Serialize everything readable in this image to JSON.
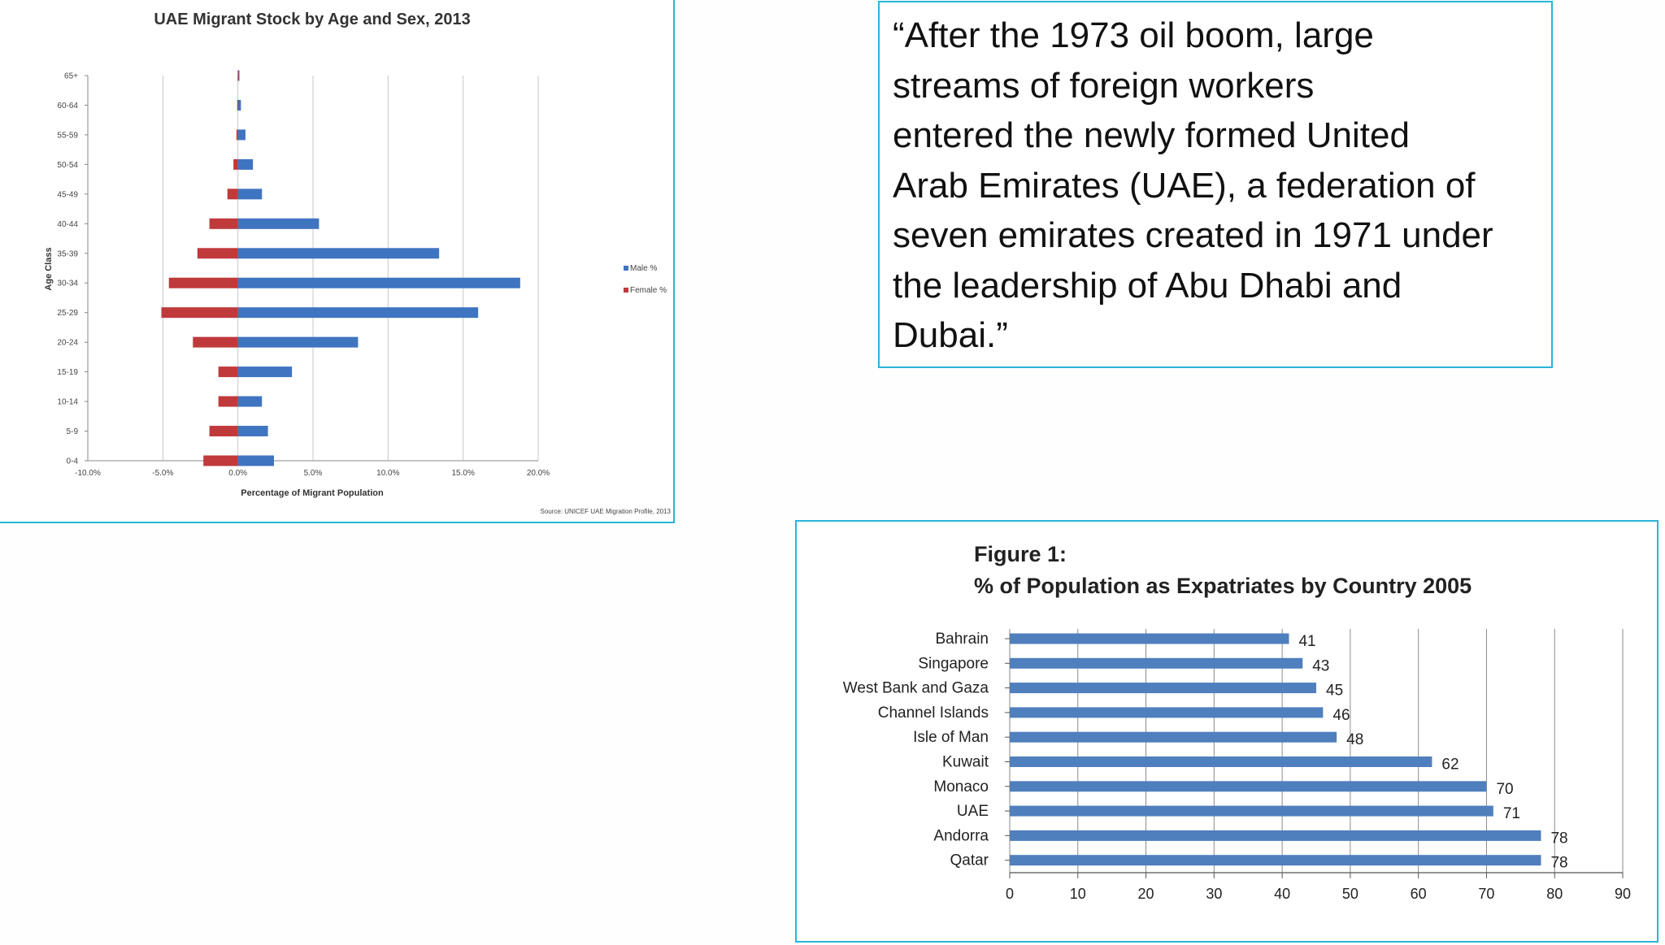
{
  "quote": {
    "text": "“After the 1973 oil boom, large\nstreams of foreign workers\nentered the newly formed United\nArab Emirates (UAE), a federation of\nseven emirates created in 1971 under\nthe leadership of Abu Dhabi and\nDubai.”"
  },
  "chart_data": [
    {
      "type": "bar",
      "orientation": "horizontal",
      "title": "UAE Migrant Stock by Age and Sex, 2013",
      "xlabel": "Percentage of Migrant Population",
      "ylabel": "Age Class",
      "xlim": [
        -10,
        20
      ],
      "x_ticks": [
        "-10.0%",
        "-5.0%",
        "0.0%",
        "5.0%",
        "10.0%",
        "15.0%",
        "20.0%"
      ],
      "categories": [
        "0-4",
        "5-9",
        "10-14",
        "15-19",
        "20-24",
        "25-29",
        "30-34",
        "35-39",
        "40-44",
        "45-49",
        "50-54",
        "55-59",
        "60-64",
        "65+"
      ],
      "series": [
        {
          "name": "Male %",
          "color": "#3f74c1",
          "values": [
            2.4,
            2.0,
            1.6,
            3.6,
            8.0,
            16.0,
            18.8,
            13.4,
            5.4,
            1.6,
            1.0,
            0.5,
            0.2,
            0.1
          ]
        },
        {
          "name": "Female %",
          "color": "#c0393b",
          "values": [
            -2.3,
            -1.9,
            -1.3,
            -1.3,
            -3.0,
            -5.1,
            -4.6,
            -2.7,
            -1.9,
            -0.7,
            -0.3,
            -0.1,
            -0.05,
            -0.02
          ]
        }
      ],
      "grid": "vertical",
      "legend": "right",
      "source": "Source: UNICEF UAE Migration Profile, 2013"
    },
    {
      "type": "bar",
      "orientation": "horizontal",
      "title": "Figure 1:",
      "subtitle": "% of Population as Expatriates by Country 2005",
      "categories": [
        "Bahrain",
        "Singapore",
        "West Bank and Gaza",
        "Channel Islands",
        "Isle of Man",
        "Kuwait",
        "Monaco",
        "UAE",
        "Andorra",
        "Qatar"
      ],
      "values": [
        41,
        43,
        45,
        46,
        48,
        62,
        70,
        71,
        78,
        78
      ],
      "xlim": [
        0,
        90
      ],
      "x_ticks": [
        0,
        10,
        20,
        30,
        40,
        50,
        60,
        70,
        80,
        90
      ],
      "color": "#4f7fbd",
      "grid": "vertical",
      "data_labels": true
    }
  ]
}
